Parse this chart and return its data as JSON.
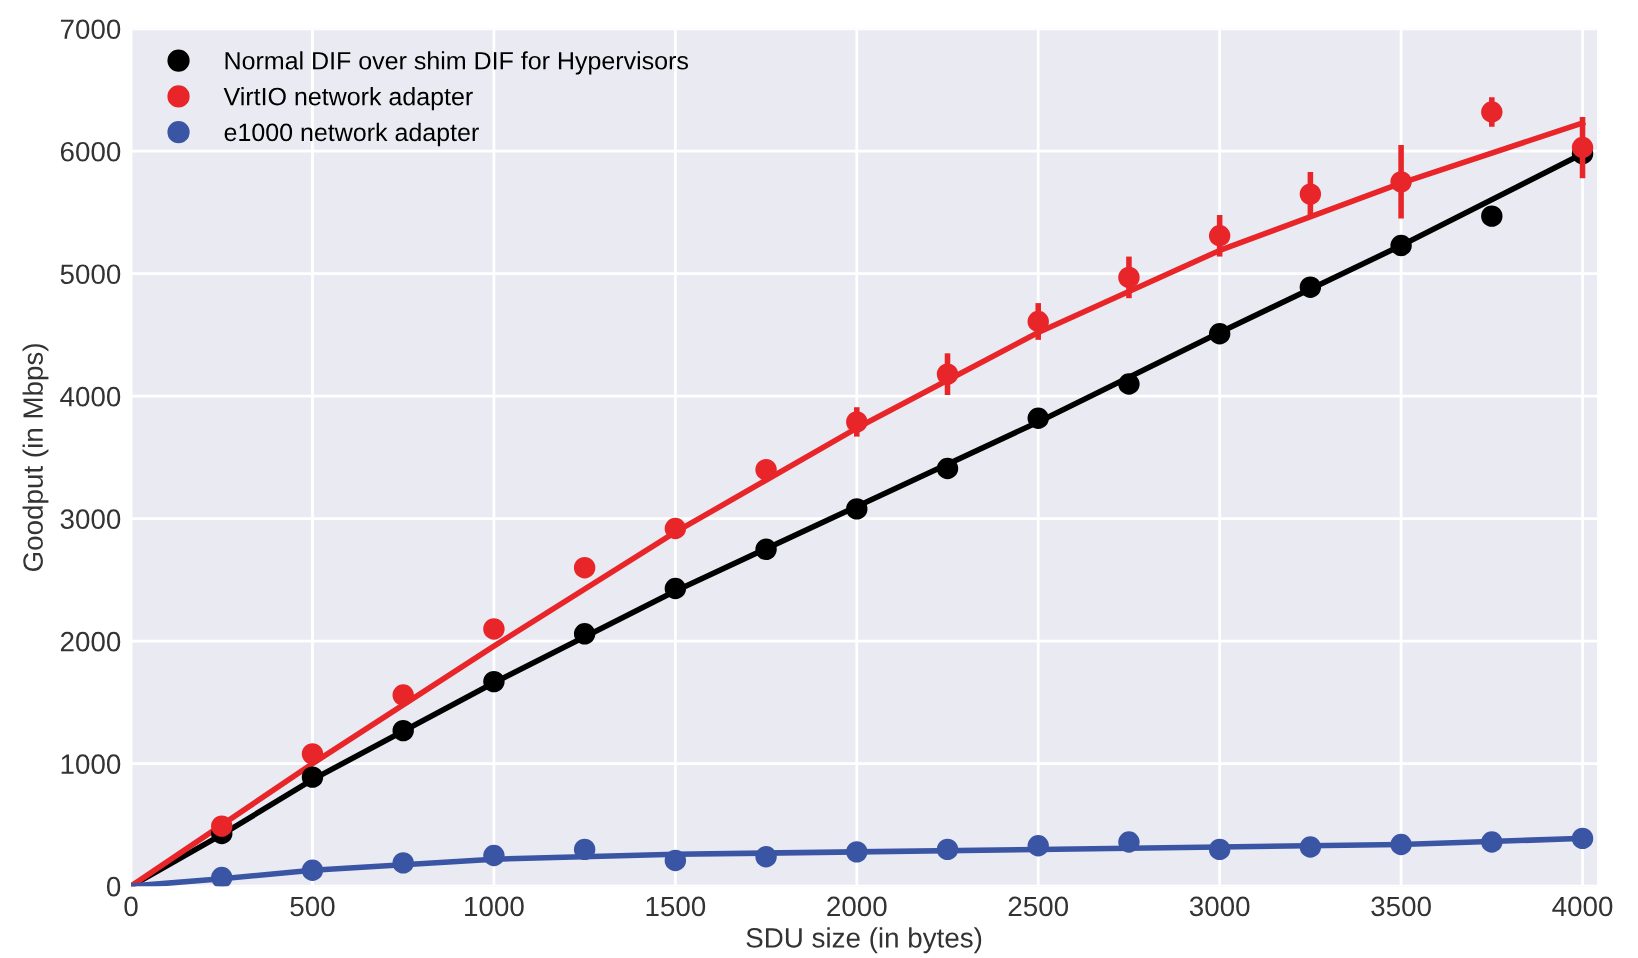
{
  "chart_data": {
    "type": "scatter",
    "xlabel": "SDU size (in bytes)",
    "ylabel": "Goodput (in Mbps)",
    "x": [
      250,
      500,
      750,
      1000,
      1250,
      1500,
      1750,
      2000,
      2250,
      2500,
      2750,
      3000,
      3250,
      3500,
      3750,
      4000
    ],
    "series": [
      {
        "name": "Normal DIF over shim DIF for Hypervisors",
        "color": "#000000",
        "values": [
          430,
          890,
          1270,
          1670,
          2060,
          2430,
          2750,
          3080,
          3410,
          3820,
          4100,
          4510,
          4890,
          5230,
          5470,
          5980
        ]
      },
      {
        "name": "VirtIO network adapter",
        "color": "#e8262a",
        "values": [
          490,
          1080,
          1560,
          2100,
          2600,
          2920,
          3400,
          3790,
          4180,
          4610,
          4970,
          5310,
          5650,
          5750,
          6320,
          6030
        ],
        "errors": [
          null,
          null,
          null,
          null,
          null,
          null,
          80,
          120,
          170,
          150,
          170,
          170,
          180,
          300,
          120,
          250
        ]
      },
      {
        "name": "e1000 network adapter",
        "color": "#3b55a5",
        "values": [
          70,
          130,
          190,
          250,
          300,
          210,
          240,
          280,
          300,
          330,
          360,
          300,
          320,
          340,
          360,
          390
        ]
      },
      {
        "type": "line",
        "marker": "none",
        "color": "#000000",
        "x": [
          0,
          250,
          500,
          1000,
          1500,
          2000,
          2500,
          3000,
          3500,
          4000
        ],
        "values": [
          0,
          420,
          870,
          1660,
          2410,
          3100,
          3790,
          4520,
          5230,
          5980
        ]
      },
      {
        "type": "line",
        "marker": "none",
        "color": "#e8262a",
        "x": [
          0,
          500,
          1000,
          1500,
          2000,
          2500,
          3000,
          3500,
          4000
        ],
        "values": [
          0,
          1000,
          1960,
          2890,
          3740,
          4520,
          5190,
          5740,
          6230
        ]
      },
      {
        "type": "line",
        "marker": "none",
        "color": "#3b55a5",
        "x": [
          0,
          250,
          500,
          1000,
          1500,
          2000,
          2500,
          3000,
          3500,
          4000
        ],
        "values": [
          0,
          60,
          130,
          220,
          260,
          280,
          300,
          320,
          340,
          390
        ]
      }
    ],
    "xlim": [
      0,
      4040
    ],
    "xticks": [
      0,
      500,
      1000,
      1500,
      2000,
      2500,
      3000,
      3500,
      4000
    ],
    "ylim": [
      0,
      7000
    ],
    "yticks": [
      0,
      1000,
      2000,
      3000,
      4000,
      5000,
      6000,
      7000
    ],
    "grid": true,
    "legend": "top left",
    "marker": "circle"
  }
}
